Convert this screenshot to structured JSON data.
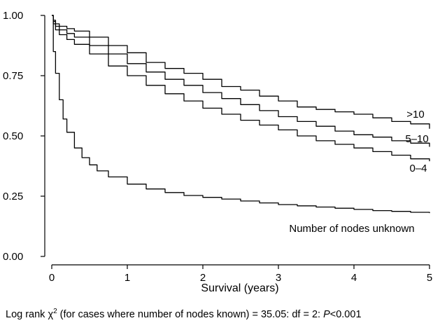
{
  "chart_data": {
    "type": "line",
    "title": "",
    "xlabel": "Survival (years)",
    "ylabel": "",
    "xlim": [
      0,
      5
    ],
    "ylim": [
      0,
      1
    ],
    "xticks": [
      "0",
      "1",
      "2",
      "3",
      "4",
      "5"
    ],
    "yticks": [
      "0.00",
      "0.25",
      "0.50",
      "0.75",
      "1.00"
    ],
    "grid": false,
    "line_color": "#000000",
    "series": [
      {
        "name": ">10",
        "x": [
          0,
          0.02,
          0.05,
          0.1,
          0.2,
          0.3,
          0.5,
          0.75,
          1.0,
          1.25,
          1.5,
          1.75,
          2.0,
          2.25,
          2.5,
          2.75,
          3.0,
          3.25,
          3.5,
          3.75,
          4.0,
          4.25,
          4.5,
          4.75,
          5.0
        ],
        "y": [
          1.0,
          0.98,
          0.965,
          0.955,
          0.945,
          0.935,
          0.91,
          0.875,
          0.845,
          0.805,
          0.78,
          0.76,
          0.735,
          0.705,
          0.69,
          0.665,
          0.645,
          0.62,
          0.61,
          0.6,
          0.59,
          0.575,
          0.56,
          0.55,
          0.53
        ]
      },
      {
        "name": "5–10",
        "x": [
          0,
          0.02,
          0.05,
          0.1,
          0.2,
          0.3,
          0.5,
          0.75,
          1.0,
          1.25,
          1.5,
          1.75,
          2.0,
          2.25,
          2.5,
          2.75,
          3.0,
          3.25,
          3.5,
          3.75,
          4.0,
          4.25,
          4.5,
          4.75,
          5.0
        ],
        "y": [
          1.0,
          0.975,
          0.955,
          0.94,
          0.925,
          0.91,
          0.875,
          0.84,
          0.8,
          0.765,
          0.735,
          0.71,
          0.68,
          0.655,
          0.63,
          0.605,
          0.58,
          0.56,
          0.54,
          0.52,
          0.505,
          0.495,
          0.48,
          0.47,
          0.455
        ]
      },
      {
        "name": "0–4",
        "x": [
          0,
          0.02,
          0.05,
          0.1,
          0.2,
          0.3,
          0.5,
          0.75,
          1.0,
          1.25,
          1.5,
          1.75,
          2.0,
          2.25,
          2.5,
          2.75,
          3.0,
          3.25,
          3.5,
          3.75,
          4.0,
          4.25,
          4.5,
          4.75,
          5.0
        ],
        "y": [
          1.0,
          0.965,
          0.94,
          0.92,
          0.9,
          0.88,
          0.84,
          0.79,
          0.75,
          0.71,
          0.675,
          0.645,
          0.615,
          0.59,
          0.565,
          0.545,
          0.525,
          0.5,
          0.48,
          0.465,
          0.45,
          0.435,
          0.42,
          0.405,
          0.395
        ]
      },
      {
        "name": "Number of nodes unknown",
        "x": [
          0,
          0.02,
          0.05,
          0.1,
          0.15,
          0.2,
          0.3,
          0.4,
          0.5,
          0.6,
          0.75,
          1.0,
          1.25,
          1.5,
          1.75,
          2.0,
          2.25,
          2.5,
          2.75,
          3.0,
          3.25,
          3.5,
          3.75,
          4.0,
          4.25,
          4.5,
          4.75,
          5.0
        ],
        "y": [
          1.0,
          0.85,
          0.76,
          0.65,
          0.57,
          0.515,
          0.45,
          0.41,
          0.38,
          0.355,
          0.33,
          0.3,
          0.28,
          0.265,
          0.253,
          0.245,
          0.238,
          0.23,
          0.222,
          0.215,
          0.21,
          0.205,
          0.2,
          0.195,
          0.19,
          0.187,
          0.183,
          0.18
        ]
      }
    ]
  },
  "footnote": {
    "text_before": "Log rank χ",
    "superscript": "2",
    "text_middle": " (for cases where number of nodes known) = 35.05: df = 2: ",
    "p_label": "P",
    "p_value": "<0.001"
  }
}
